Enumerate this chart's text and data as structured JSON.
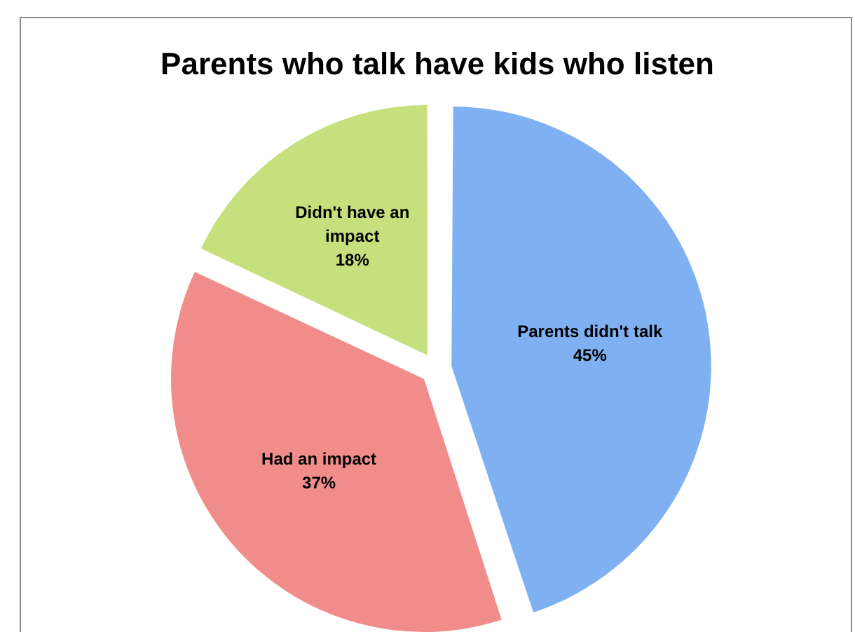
{
  "chart_data": {
    "type": "pie",
    "title": "Parents who talk have kids who listen",
    "categories": [
      "Parents didn't talk",
      "Had an impact",
      "Didn't have an impact"
    ],
    "values": [
      45,
      37,
      18
    ],
    "colors": [
      "#7eb0f2",
      "#f08c8a",
      "#c6e07e"
    ],
    "value_labels": [
      "45%",
      "37%",
      "18%"
    ],
    "legend": false
  }
}
